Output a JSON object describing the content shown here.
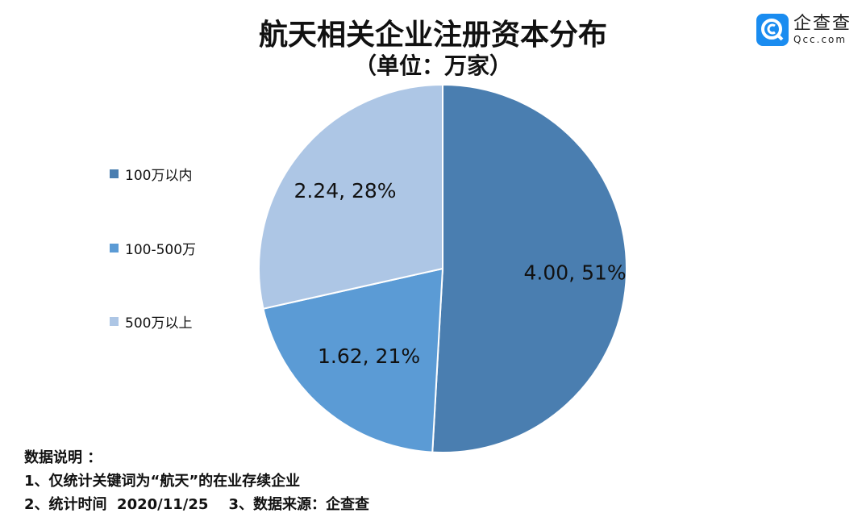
{
  "chart_data": {
    "type": "pie",
    "title": "航天相关企业注册资本分布",
    "subtitle": "（单位：万家）",
    "start_angle": "top",
    "direction": "clockwise",
    "legend_position": "left",
    "slices": [
      {
        "label": "100万以内",
        "value": 4.0,
        "percent": 51,
        "data_label": "4.00, 51%",
        "color": "#4a7eb0"
      },
      {
        "label": "100-500万",
        "value": 1.62,
        "percent": 21,
        "data_label": "1.62, 21%",
        "color": "#5b9bd5"
      },
      {
        "label": "500万以上",
        "value": 2.24,
        "percent": 28,
        "data_label": "2.24, 28%",
        "color": "#adc6e5"
      }
    ]
  },
  "logo": {
    "name": "企查查",
    "domain": "Qcc.com",
    "color": "#1a8cf0"
  },
  "notes": [
    "数据说明 ：",
    "1、仅统计关键词为“航天”的在业存续企业",
    "2、统计时间  2020/11/25    3、数据来源：企查查"
  ]
}
